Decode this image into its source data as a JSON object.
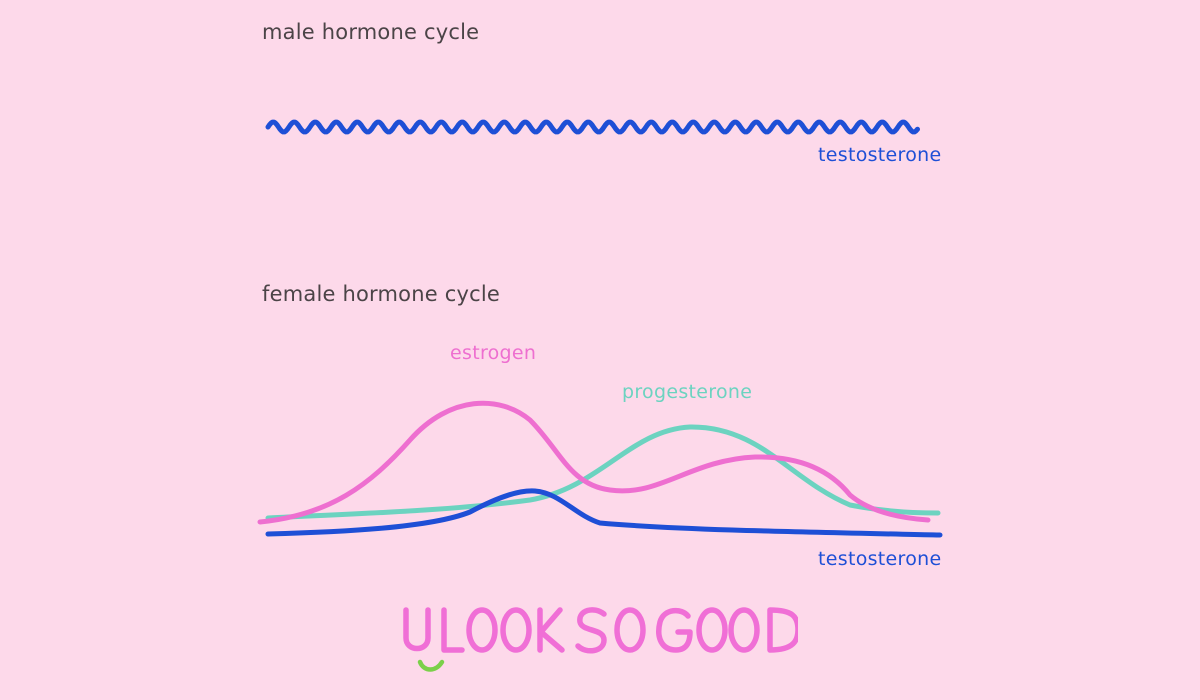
{
  "colors": {
    "background": "#fdd9ea",
    "title_text": "#4b4447",
    "testosterone": "#1e4fd6",
    "estrogen": "#ee6fd0",
    "progesterone": "#6cd3c0",
    "caption_text": "#f06fd6",
    "caption_smile": "#7bd04a"
  },
  "male": {
    "title": "male hormone cycle",
    "label": "testosterone"
  },
  "female": {
    "title": "female hormone cycle",
    "labels": {
      "estrogen": "estrogen",
      "progesterone": "progesterone",
      "testosterone": "testosterone"
    }
  },
  "caption": {
    "text": "U LOOK SO GOOD"
  }
}
